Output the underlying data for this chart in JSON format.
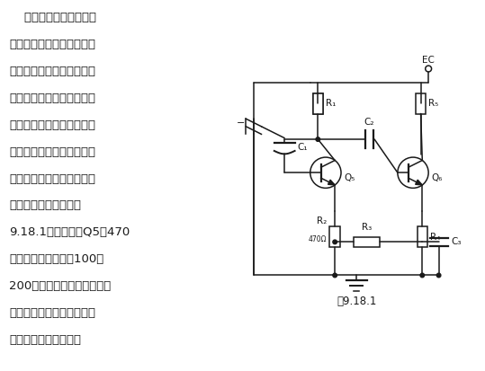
{
  "fig_label": "图9.18.1",
  "text_lines": [
    "    一台香港产丽佳牌单声",
    "道收录机，收听广播时输出",
    "功率正常，而用磁带放音时",
    "输出功率明显不足，经检查",
    "磁头及有关电路均未发现故",
    "障。怀疑由于工作日久磁头",
    "放大器增益下降造成。将该",
    "磁头放大器（电路如图",
    "9.18.1）中晶体管Q5的470",
    "欧发射极电阻用一只100～",
    "200欧电阻代换后，减小了负",
    "反馈，提高了放大器增益，",
    "输出功率恢复了正常。"
  ],
  "bg_color": "#ffffff",
  "line_color": "#1a1a1a",
  "text_font_size": 9.5,
  "label_font_size": 7.5
}
